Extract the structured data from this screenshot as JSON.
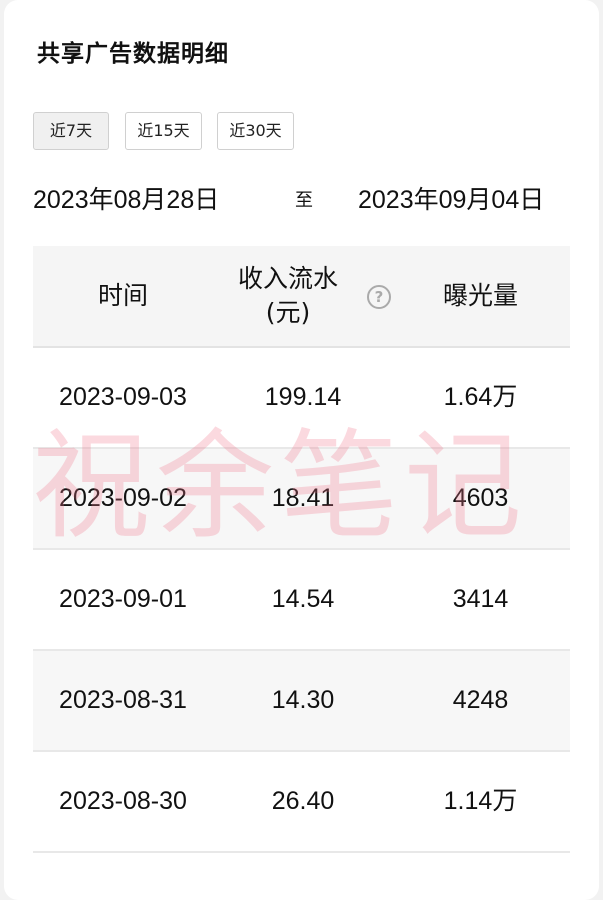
{
  "title": "共享广告数据明细",
  "range_buttons": [
    {
      "label": "近7天",
      "active": true
    },
    {
      "label": "近15天",
      "active": false
    },
    {
      "label": "近30天",
      "active": false
    }
  ],
  "date_range": {
    "start": "2023年08月28日",
    "separator": "至",
    "end": "2023年09月04日"
  },
  "table": {
    "headers": {
      "time": "时间",
      "revenue": "收入流水\n(元)",
      "exposure": "曝光量"
    },
    "help_icon": "question-circle-icon",
    "rows": [
      {
        "date": "2023-09-03",
        "revenue": "199.14",
        "exposure": "1.64万"
      },
      {
        "date": "2023-09-02",
        "revenue": "18.41",
        "exposure": "4603"
      },
      {
        "date": "2023-09-01",
        "revenue": "14.54",
        "exposure": "3414"
      },
      {
        "date": "2023-08-31",
        "revenue": "14.30",
        "exposure": "4248"
      },
      {
        "date": "2023-08-30",
        "revenue": "26.40",
        "exposure": "1.14万"
      }
    ]
  },
  "watermark": "祝余笔记"
}
